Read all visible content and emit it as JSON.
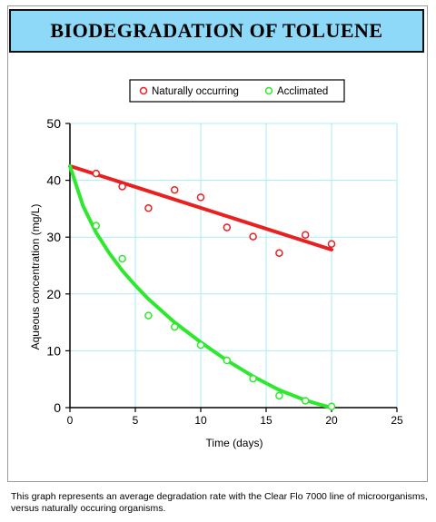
{
  "title": "BIODEGRADATION OF TOLUENE",
  "caption": "This graph represents an average degradation rate with the Clear Flo 7000 line of microorganisms, versus naturally occuring organisms.",
  "chart_data": {
    "type": "scatter",
    "xlabel": "Time (days)",
    "ylabel": "Aqueous concentration (mg/L)",
    "xlim": [
      0,
      25
    ],
    "ylim": [
      0,
      50
    ],
    "xticks": [
      0,
      5,
      10,
      15,
      20,
      25
    ],
    "yticks": [
      0,
      10,
      20,
      30,
      40,
      50
    ],
    "grid": true,
    "legend_position": "top",
    "series": [
      {
        "name": "Naturally occurring",
        "color": "#e82020",
        "points": [
          [
            2,
            41.2
          ],
          [
            4,
            38.9
          ],
          [
            6,
            35.1
          ],
          [
            8,
            38.3
          ],
          [
            10,
            37.0
          ],
          [
            12,
            31.7
          ],
          [
            14,
            30.1
          ],
          [
            16,
            27.2
          ],
          [
            18,
            30.4
          ],
          [
            20,
            28.8
          ]
        ],
        "fit": {
          "kind": "linear",
          "x": [
            0,
            20
          ],
          "y": [
            42.5,
            27.8
          ]
        }
      },
      {
        "name": "Acclimated",
        "color": "#2ee82e",
        "points": [
          [
            2,
            32.0
          ],
          [
            4,
            26.2
          ],
          [
            6,
            16.2
          ],
          [
            8,
            14.2
          ],
          [
            10,
            11.0
          ],
          [
            12,
            8.3
          ],
          [
            14,
            5.1
          ],
          [
            16,
            2.1
          ],
          [
            18,
            1.2
          ],
          [
            20,
            0.2
          ]
        ],
        "fit": {
          "kind": "curve",
          "x": [
            0,
            1,
            2,
            3,
            4,
            5,
            6,
            8,
            10,
            12,
            14,
            16,
            18,
            19,
            20
          ],
          "y": [
            42.5,
            35.5,
            30.8,
            27.2,
            24.1,
            21.5,
            19.1,
            15.0,
            11.5,
            8.3,
            5.5,
            3.1,
            1.3,
            0.6,
            0.0
          ]
        }
      }
    ]
  }
}
